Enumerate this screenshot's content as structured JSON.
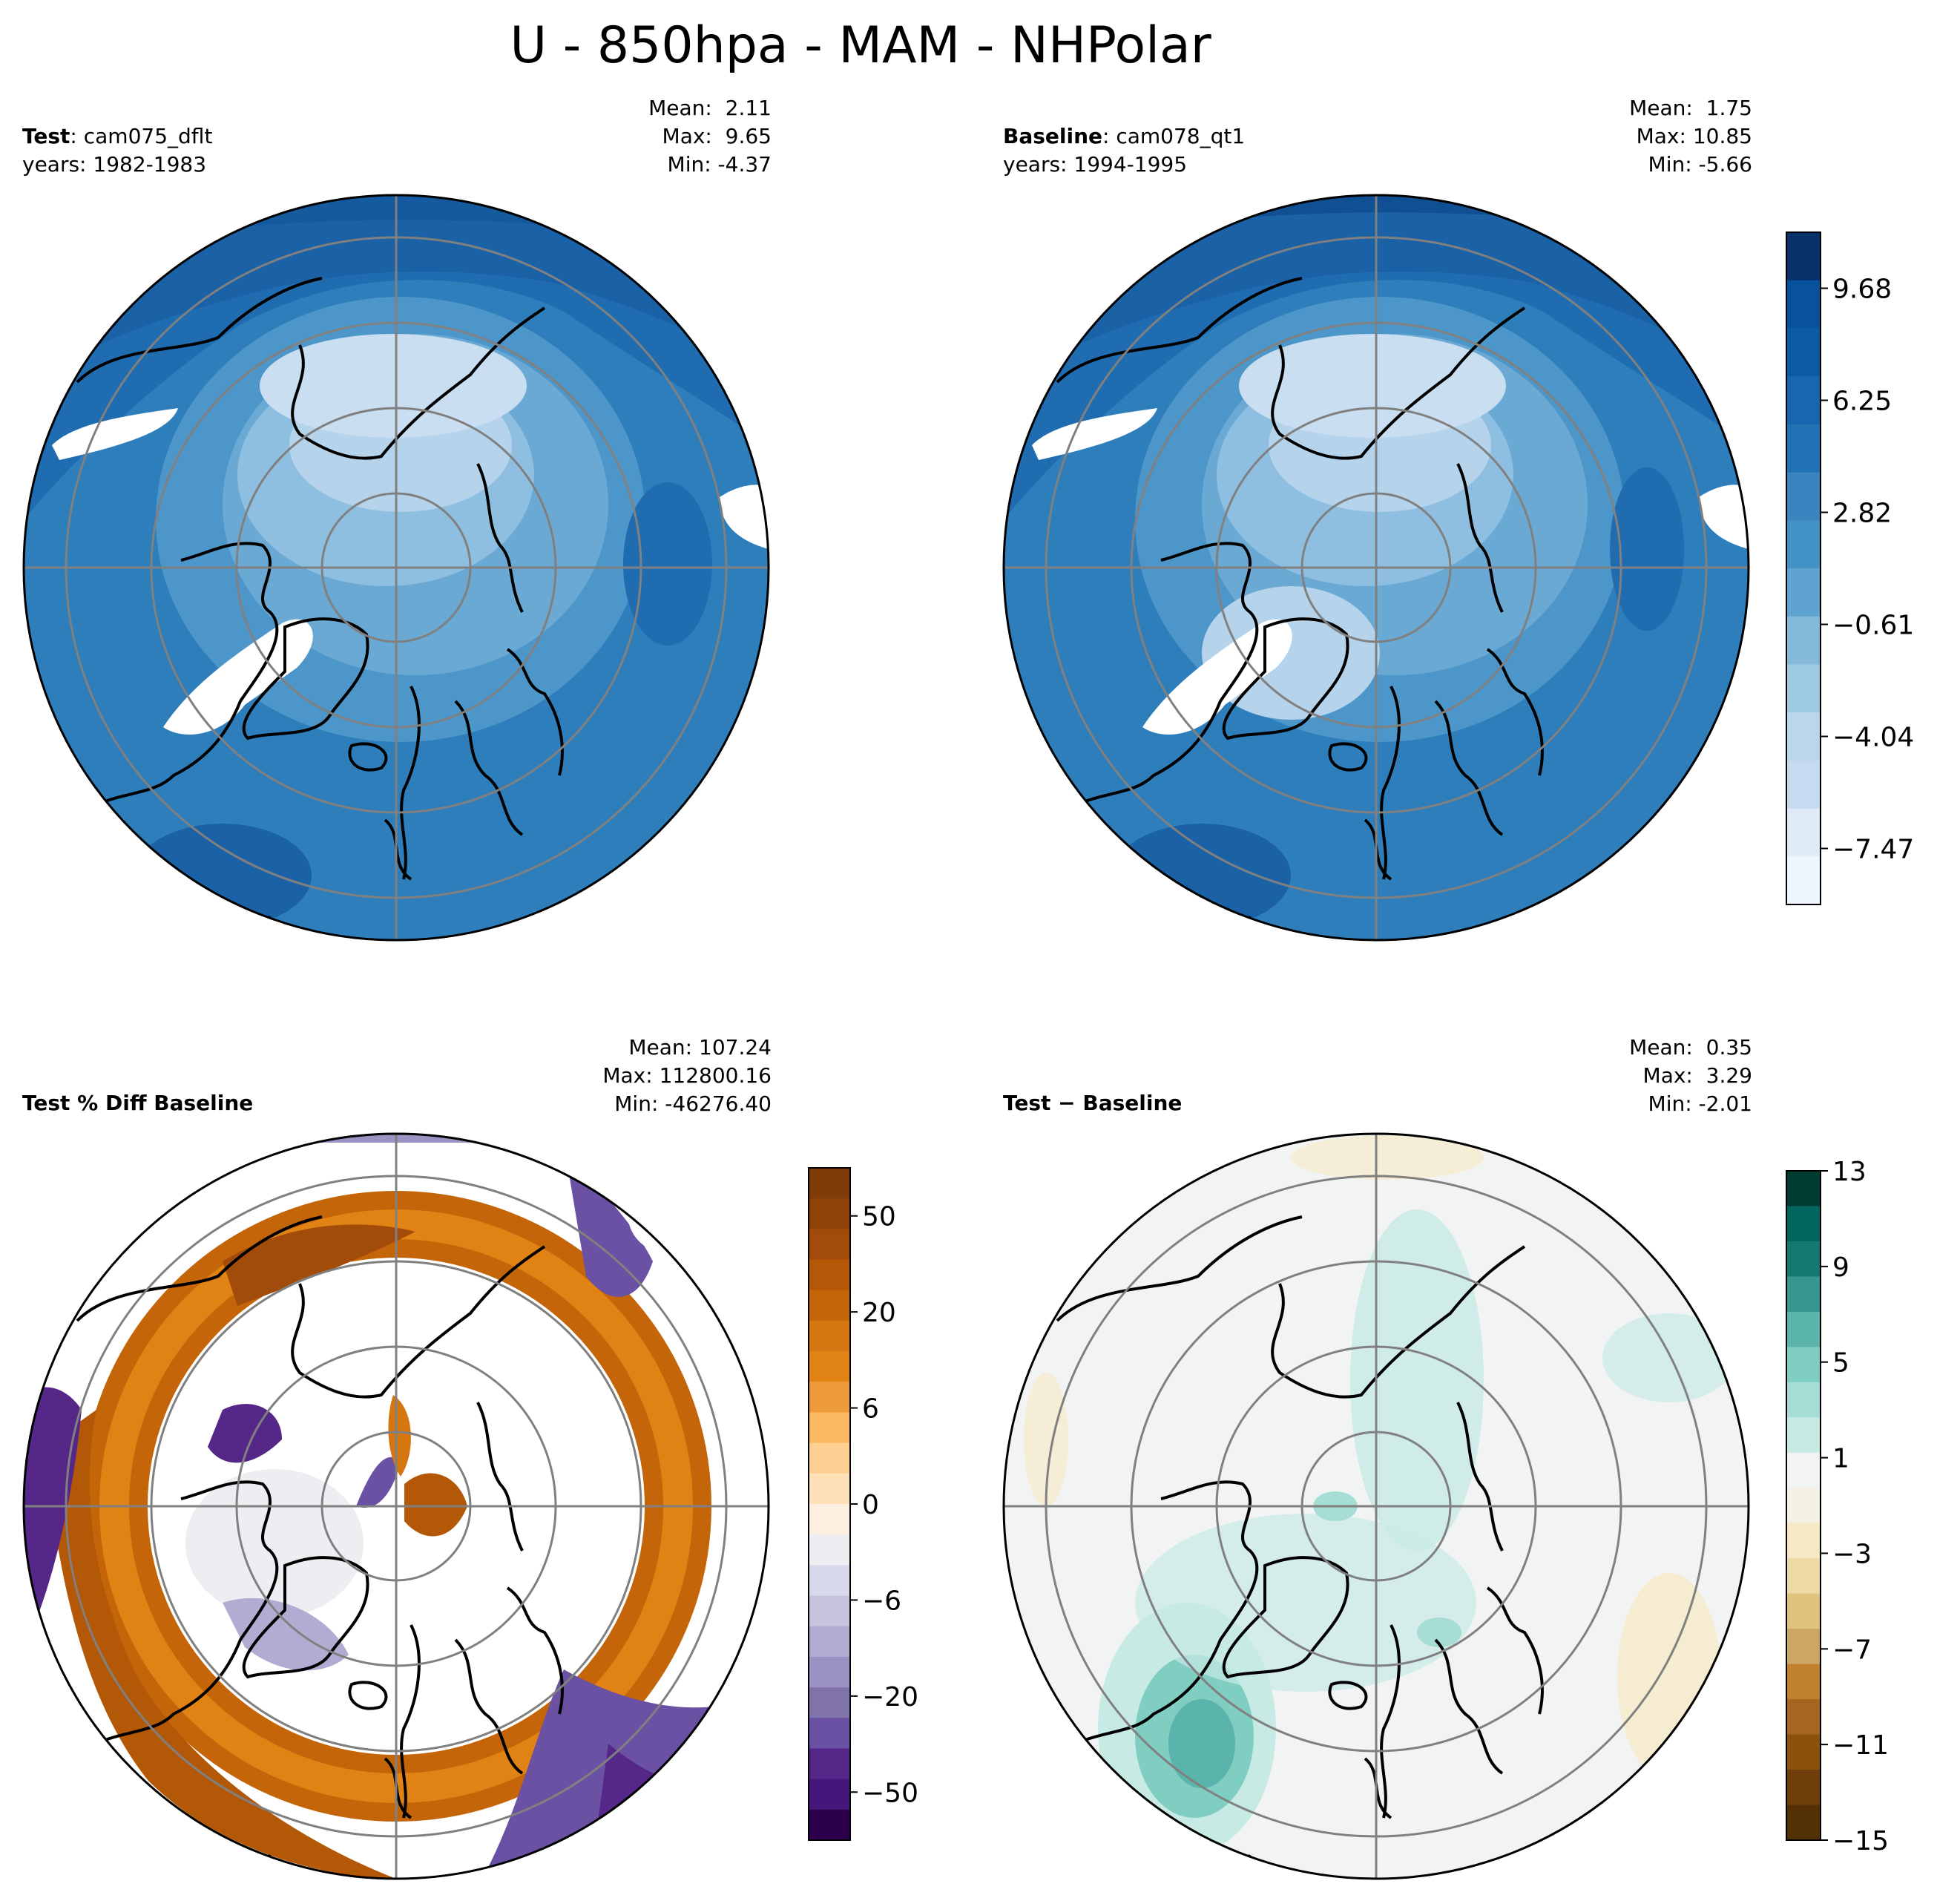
{
  "title": "U - 850hpa - MAM - NHPolar",
  "panels": [
    {
      "id": "test",
      "label_bold": "Test",
      "label_rest": ": cam075_dflt",
      "years": "years: 1982-1983",
      "mean": "Mean:  2.11",
      "max": "Max:  9.65",
      "min": "Min: -4.37"
    },
    {
      "id": "baseline",
      "label_bold": "Baseline",
      "label_rest": ": cam078_qt1",
      "years": "years: 1994-1995",
      "mean": "Mean:  1.75",
      "max": "Max: 10.85",
      "min": "Min: -5.66"
    },
    {
      "id": "pctdiff",
      "label_bold": "Test % Diff Baseline",
      "label_rest": "",
      "years": "",
      "mean": "Mean: 107.24",
      "max": "Max: 112800.16",
      "min": "Min: -46276.40"
    },
    {
      "id": "diff",
      "label_bold": "Test − Baseline",
      "label_rest": "",
      "years": "",
      "mean": "Mean:  0.35",
      "max": "Max:  3.29",
      "min": "Min: -2.01"
    }
  ],
  "colorbars": {
    "main": {
      "ticks": [
        "9.68",
        "6.25",
        "2.82",
        "−0.61",
        "−4.04",
        "−7.47"
      ],
      "colors": [
        "#08306b",
        "#08519c",
        "#0b5aa6",
        "#1865b0",
        "#2171b5",
        "#3a84c0",
        "#4292c6",
        "#5fa3d0",
        "#85b9dc",
        "#9ecae1",
        "#bad6eb",
        "#c6dbef",
        "#deebf7",
        "#eef5fc"
      ]
    },
    "pct": {
      "ticks": [
        "50",
        "20",
        "6",
        "0",
        "−6",
        "−20",
        "−50"
      ],
      "colors": [
        "#7f3b08",
        "#8f4208",
        "#a14c0a",
        "#b35806",
        "#c4650a",
        "#d67610",
        "#e08214",
        "#ee9b3c",
        "#fdb863",
        "#fdcf92",
        "#fee0b6",
        "#fcefe0",
        "#eeeef2",
        "#d8daeb",
        "#c8c3df",
        "#b2abd2",
        "#9d92c4",
        "#8073ac",
        "#6a51a3",
        "#542788",
        "#45177a",
        "#2d004b"
      ]
    },
    "diff": {
      "ticks": [
        "13",
        "9",
        "5",
        "1",
        "−3",
        "−7",
        "−11",
        "−15"
      ],
      "colors": [
        "#003c30",
        "#01665e",
        "#137a71",
        "#35978f",
        "#5ab4ac",
        "#80cdc1",
        "#a6ddd4",
        "#c7eae5",
        "#f2f4f3",
        "#f5f0e4",
        "#f6e8c3",
        "#ecd9a4",
        "#dfc27d",
        "#cda565",
        "#bf812d",
        "#a66520",
        "#8c510a",
        "#6e3f0a",
        "#543005"
      ]
    }
  }
}
